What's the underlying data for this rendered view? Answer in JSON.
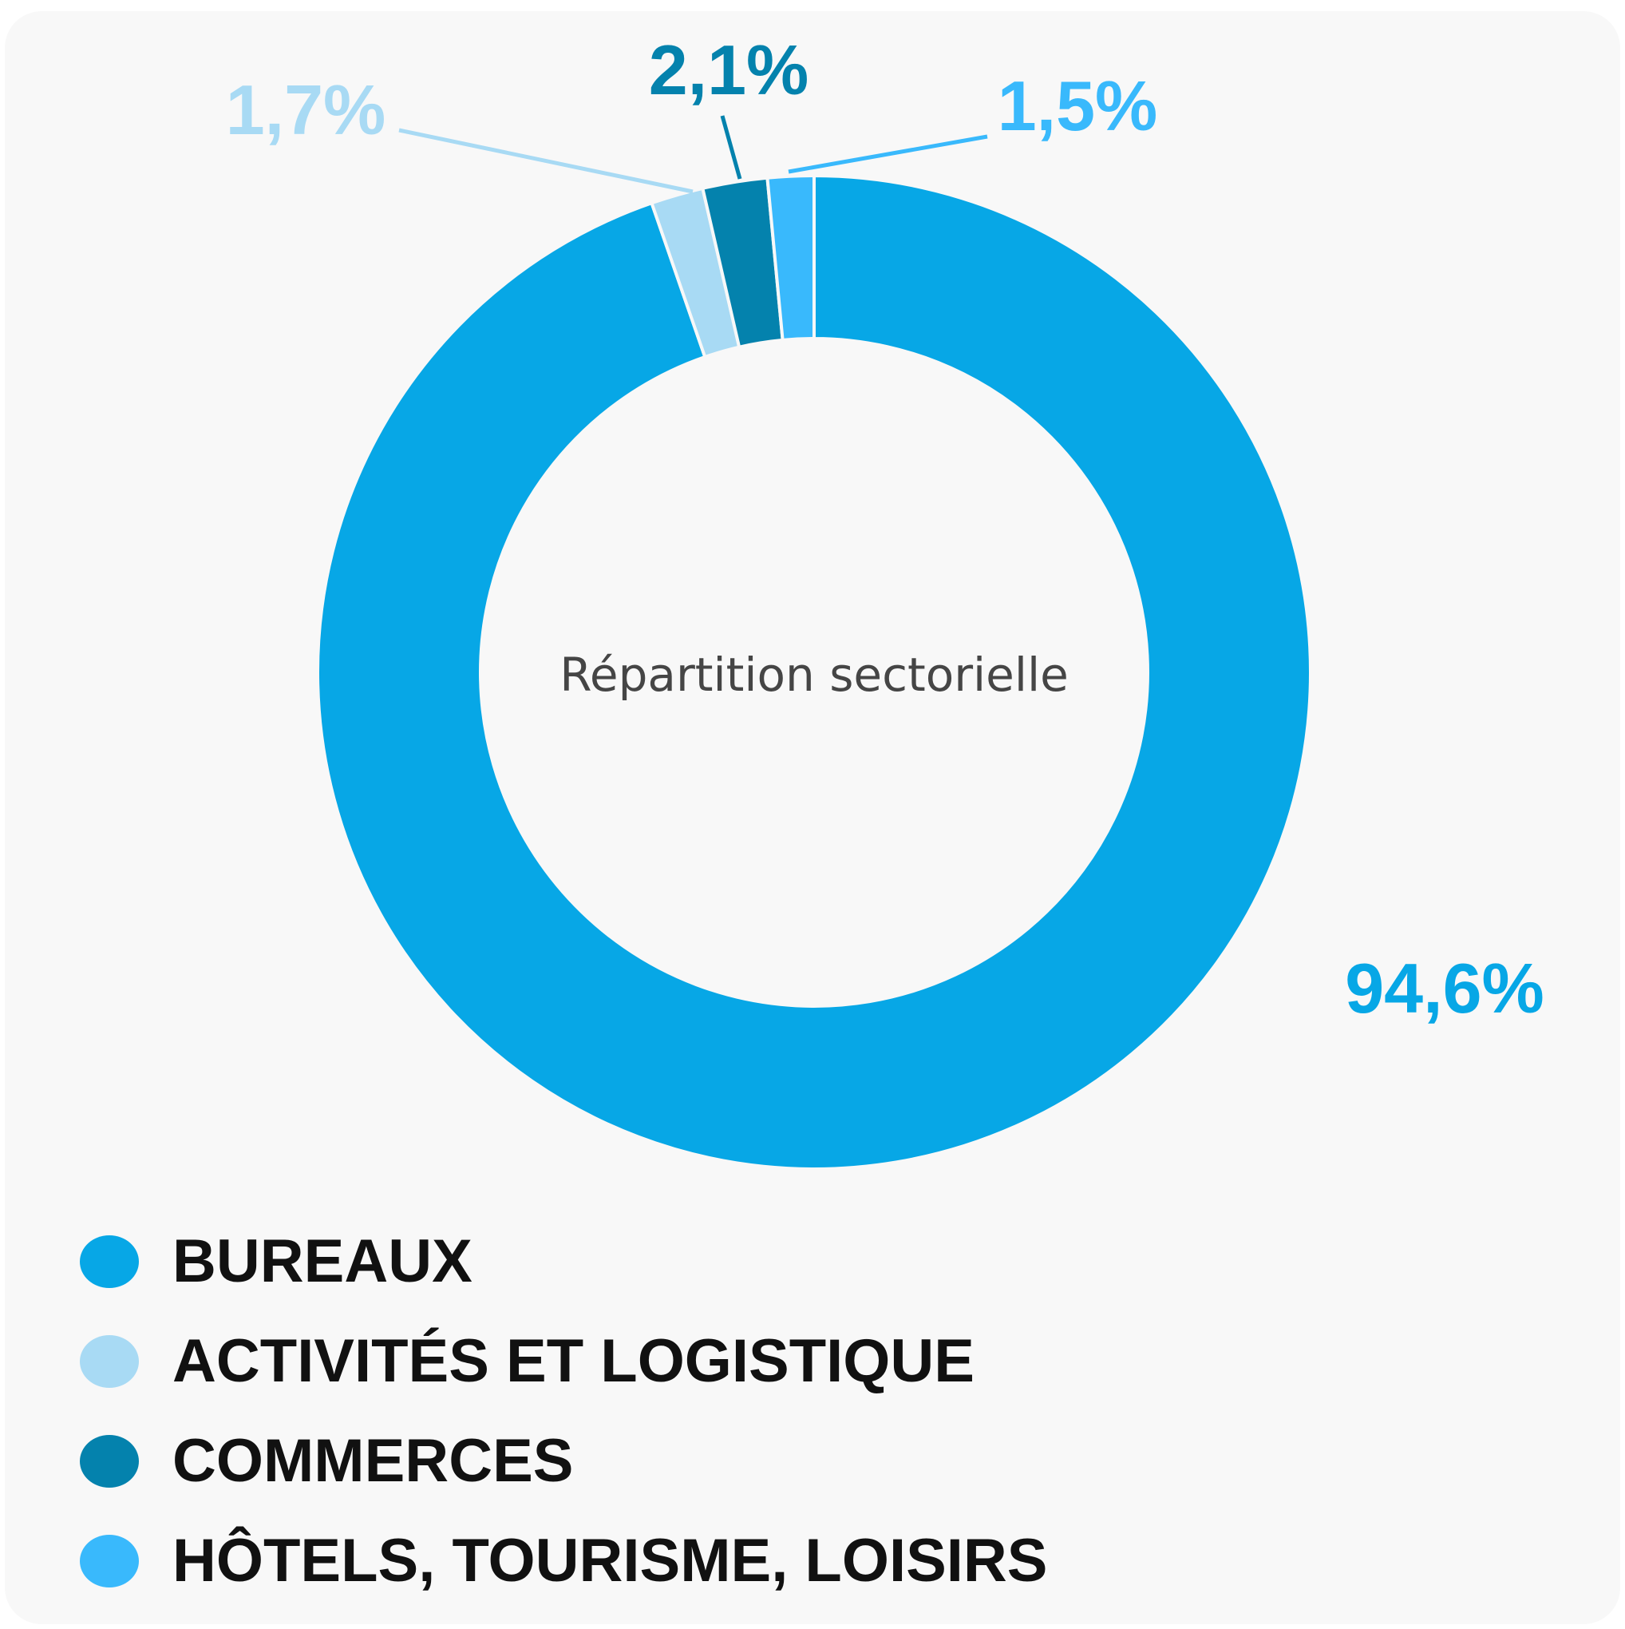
{
  "chart_data": {
    "type": "pie",
    "variant": "donut",
    "center_label": "Répartition sectorielle",
    "slices": [
      {
        "label": "BUREAUX",
        "value": 94.6,
        "display": "94,6%",
        "color": "#07a7e6",
        "label_color": "#07a7e6"
      },
      {
        "label": "ACTIVITÉS ET LOGISTIQUE",
        "value": 1.7,
        "display": "1,7%",
        "color": "#a8daf4",
        "label_color": "#a8daf4"
      },
      {
        "label": "COMMERCES",
        "value": 2.1,
        "display": "2,1%",
        "color": "#0482ad",
        "label_color": "#0482ad"
      },
      {
        "label": "HÔTELS, TOURISME, LOISIRS",
        "value": 1.5,
        "display": "1,5%",
        "color": "#39b9fc",
        "label_color": "#39b9fc"
      }
    ],
    "legend_position": "bottom-left"
  }
}
